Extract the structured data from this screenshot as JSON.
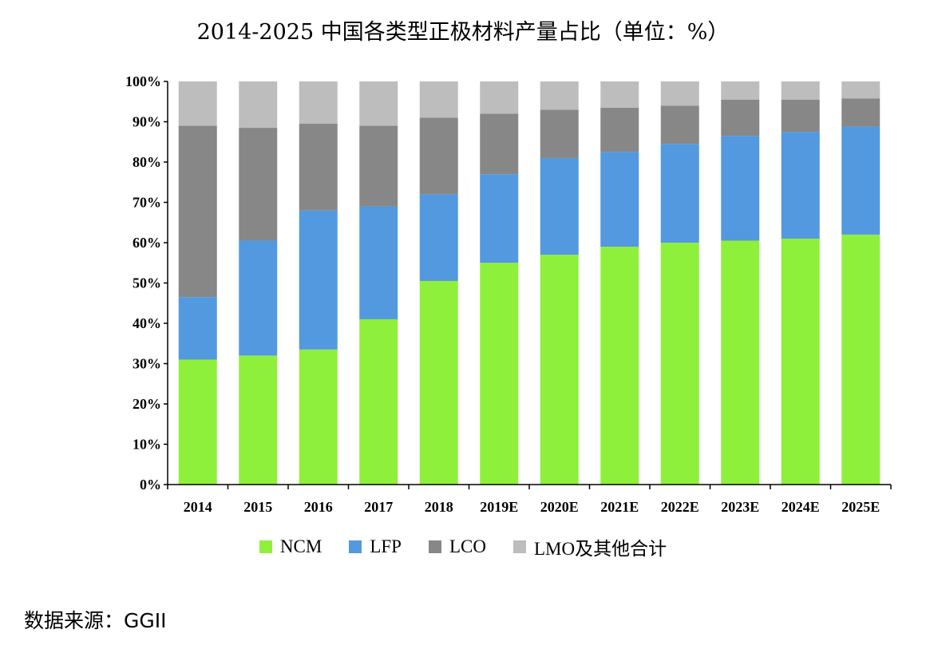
{
  "title": "2014-2025 中国各类型正极材料产量占比（单位：%）",
  "source": "数据来源：GGII",
  "chart_data": {
    "type": "bar",
    "stacked": true,
    "categories": [
      "2014",
      "2015",
      "2016",
      "2017",
      "2018",
      "2019E",
      "2020E",
      "2021E",
      "2022E",
      "2023E",
      "2024E",
      "2025E"
    ],
    "series": [
      {
        "name": "NCM",
        "color": "#8FF03C",
        "values": [
          31,
          32,
          33.5,
          41,
          50.5,
          55,
          57,
          59,
          60,
          60.5,
          61,
          62
        ]
      },
      {
        "name": "LFP",
        "color": "#5299DF",
        "values": [
          15.5,
          28.5,
          34.5,
          28,
          21.5,
          22,
          24,
          23.5,
          24.5,
          26,
          26.5,
          26.8
        ]
      },
      {
        "name": "LCO",
        "color": "#878787",
        "values": [
          42.5,
          28,
          21.5,
          20,
          19,
          15,
          12,
          11,
          9.5,
          9,
          8,
          7
        ]
      },
      {
        "name": "LMO及其他合计",
        "color": "#BDBDBD",
        "values": [
          11,
          11.5,
          10.5,
          11,
          9,
          8,
          7,
          6.5,
          6,
          4.5,
          4.5,
          4.2
        ]
      }
    ],
    "ylim": [
      0,
      100
    ],
    "yticks": [
      "0%",
      "10%",
      "20%",
      "30%",
      "40%",
      "50%",
      "60%",
      "70%",
      "80%",
      "90%",
      "100%"
    ],
    "legend_position": "bottom",
    "grid": false
  }
}
